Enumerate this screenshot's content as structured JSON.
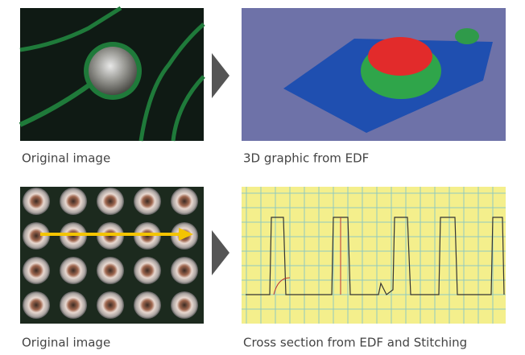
{
  "panels": [
    {
      "caption": "Original image"
    },
    {
      "caption": "3D graphic from EDF"
    },
    {
      "caption": "Original image"
    },
    {
      "caption": "Cross section from EDF and Stitching"
    }
  ]
}
